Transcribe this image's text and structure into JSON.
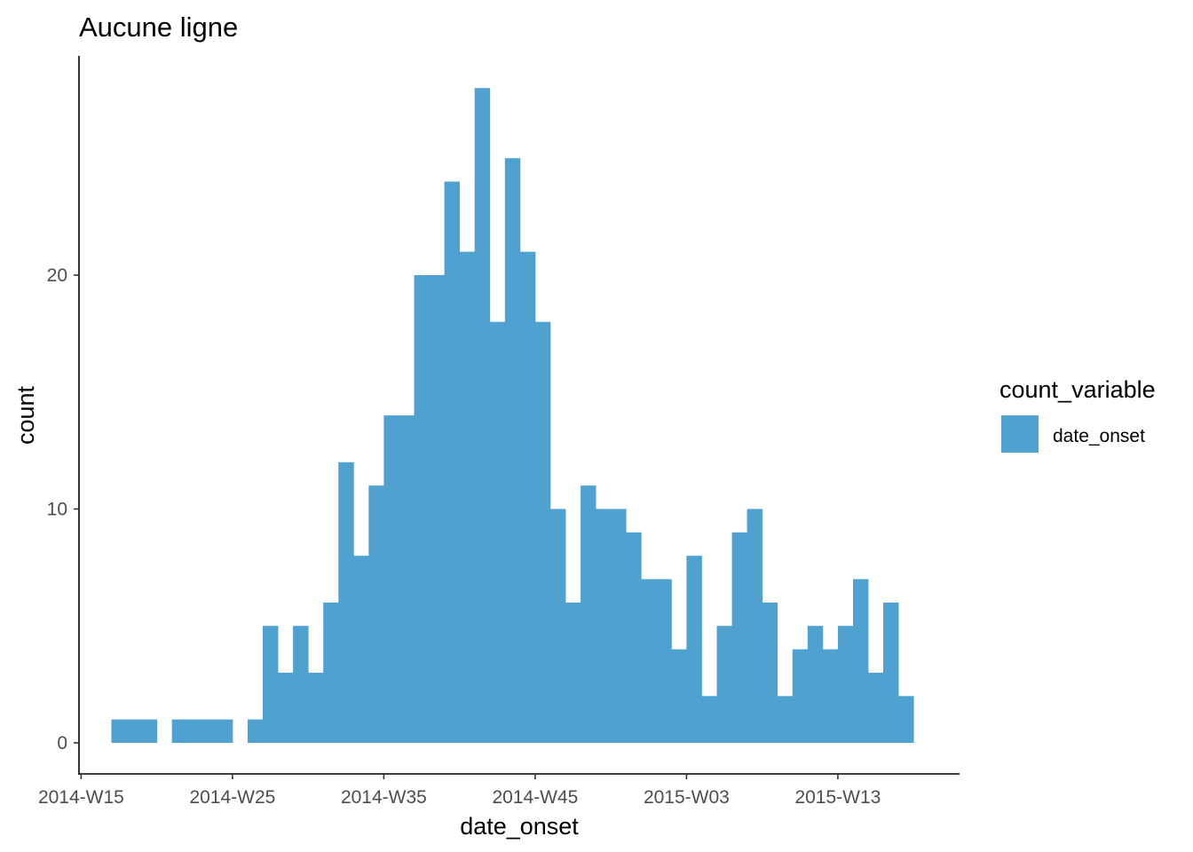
{
  "chart_data": {
    "type": "bar",
    "title": "Aucune ligne",
    "xlabel": "date_onset",
    "ylabel": "count",
    "x_tick_labels": [
      "2014-W15",
      "2014-W25",
      "2014-W35",
      "2014-W45",
      "2015-W03",
      "2015-W13"
    ],
    "y_tick_labels": [
      "0",
      "10",
      "20"
    ],
    "ylim": [
      0,
      28
    ],
    "grid": false,
    "legend": {
      "title": "count_variable",
      "position": "right",
      "entries": [
        {
          "label": "date_onset",
          "color": "#4fa1cf"
        }
      ]
    },
    "x_start_week": "2014-W15",
    "categories": [
      "2014-W15",
      "2014-W16",
      "2014-W17",
      "2014-W18",
      "2014-W19",
      "2014-W20",
      "2014-W21",
      "2014-W22",
      "2014-W23",
      "2014-W24",
      "2014-W25",
      "2014-W26",
      "2014-W27",
      "2014-W28",
      "2014-W29",
      "2014-W30",
      "2014-W31",
      "2014-W32",
      "2014-W33",
      "2014-W34",
      "2014-W35",
      "2014-W36",
      "2014-W37",
      "2014-W38",
      "2014-W39",
      "2014-W40",
      "2014-W41",
      "2014-W42",
      "2014-W43",
      "2014-W44",
      "2014-W45",
      "2014-W46",
      "2014-W47",
      "2014-W48",
      "2014-W49",
      "2014-W50",
      "2014-W51",
      "2014-W52",
      "2015-W01",
      "2015-W02",
      "2015-W03",
      "2015-W04",
      "2015-W05",
      "2015-W06",
      "2015-W07",
      "2015-W08",
      "2015-W09",
      "2015-W10",
      "2015-W11",
      "2015-W12",
      "2015-W13",
      "2015-W14",
      "2015-W15",
      "2015-W16",
      "2015-W17",
      "2015-W18",
      "2015-W19",
      "2015-W20"
    ],
    "series": [
      {
        "color": "#4fa1cf",
        "values": [
          0,
          0,
          1,
          1,
          1,
          0,
          1,
          1,
          1,
          1,
          0,
          1,
          5,
          3,
          5,
          3,
          6,
          12,
          8,
          11,
          14,
          14,
          20,
          20,
          24,
          21,
          28,
          18,
          25,
          21,
          18,
          10,
          6,
          11,
          10,
          10,
          9,
          7,
          7,
          4,
          8,
          2,
          5,
          9,
          10,
          6,
          2,
          4,
          5,
          4,
          5,
          7,
          3,
          6,
          2,
          0,
          0,
          0
        ]
      }
    ]
  }
}
